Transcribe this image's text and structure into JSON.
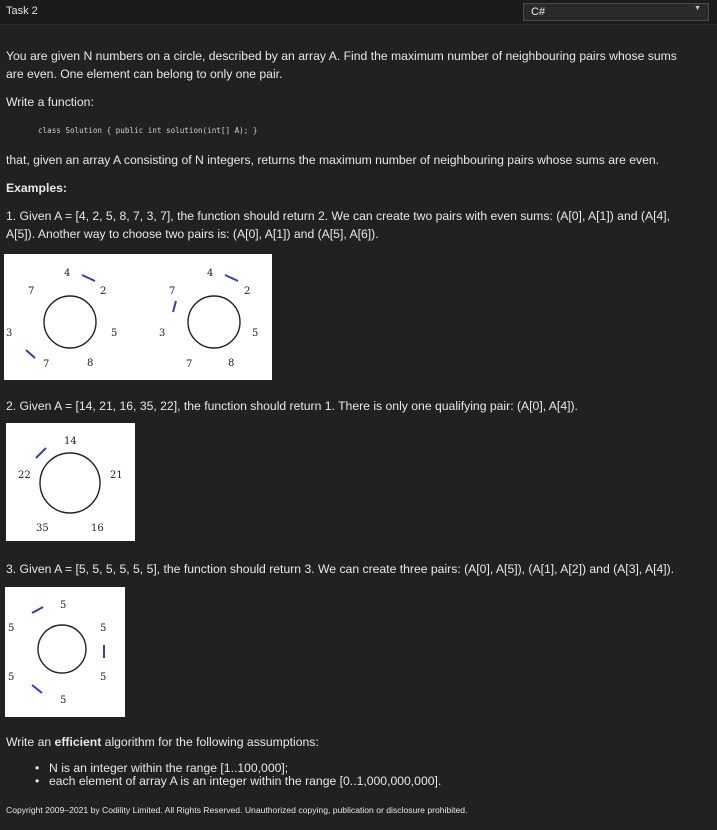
{
  "header": {
    "task_title": "Task 2",
    "language_selected": "C#",
    "caret_icon": "caret-down-icon"
  },
  "statement": {
    "p1_line1": "You are given N numbers on a circle, described by an array A. Find the maximum number of neighbouring pairs whose sums",
    "p1_line2": "are even. One element can belong to only one pair.",
    "write_function": "Write a function:",
    "code_signature": "class Solution { public int solution(int[] A); }",
    "p2": "that, given an array A consisting of N integers, returns the maximum number of neighbouring pairs whose sums are even.",
    "examples_heading": "Examples:"
  },
  "examples": [
    {
      "text_line1": "1. Given A = [4, 2, 5, 8, 7, 3, 7], the function should return 2. We can create two pairs with even sums: (A[0], A[1]) and (A[4],",
      "text_line2": "A[5]). Another way to choose two pairs is: (A[0], A[1]) and (A[5], A[6]).",
      "figures": [
        {
          "numbers": [
            "4",
            "2",
            "5",
            "8",
            "7",
            "3",
            "7"
          ],
          "pair_marks": [
            "4-2",
            "7-3"
          ]
        },
        {
          "numbers": [
            "4",
            "2",
            "5",
            "8",
            "7",
            "3",
            "7"
          ],
          "pair_marks": [
            "4-2",
            "3-7"
          ]
        }
      ]
    },
    {
      "text": "2. Given A = [14, 21, 16, 35, 22], the function should return 1. There is only one qualifying pair: (A[0], A[4]).",
      "figures": [
        {
          "numbers": [
            "14",
            "21",
            "16",
            "35",
            "22"
          ],
          "pair_marks": [
            "22-14"
          ]
        }
      ]
    },
    {
      "text": "3. Given A = [5, 5, 5, 5, 5, 5], the function should return 3. We can create three pairs: (A[0], A[5]), (A[1], A[2]) and (A[3], A[4]).",
      "figures": [
        {
          "numbers": [
            "5",
            "5",
            "5",
            "5",
            "5",
            "5"
          ],
          "pair_marks": [
            "5-5",
            "5-5",
            "5-5"
          ]
        }
      ]
    }
  ],
  "assumptions": {
    "intro_before": "Write an ",
    "intro_bold": "efficient",
    "intro_after": " algorithm for the following assumptions:",
    "items": [
      "N is an integer within the range [1..100,000];",
      "each element of array A is an integer within the range [0..1,000,000,000]."
    ]
  },
  "footer": {
    "copyright": "Copyright 2009–2021 by Codility Limited. All Rights Reserved. Unauthorized copying, publication or disclosure prohibited."
  },
  "colors": {
    "page_background": "#212121",
    "text": "#e8e8e8",
    "figure_background": "#ffffff",
    "pair_mark": "#3340a8"
  }
}
